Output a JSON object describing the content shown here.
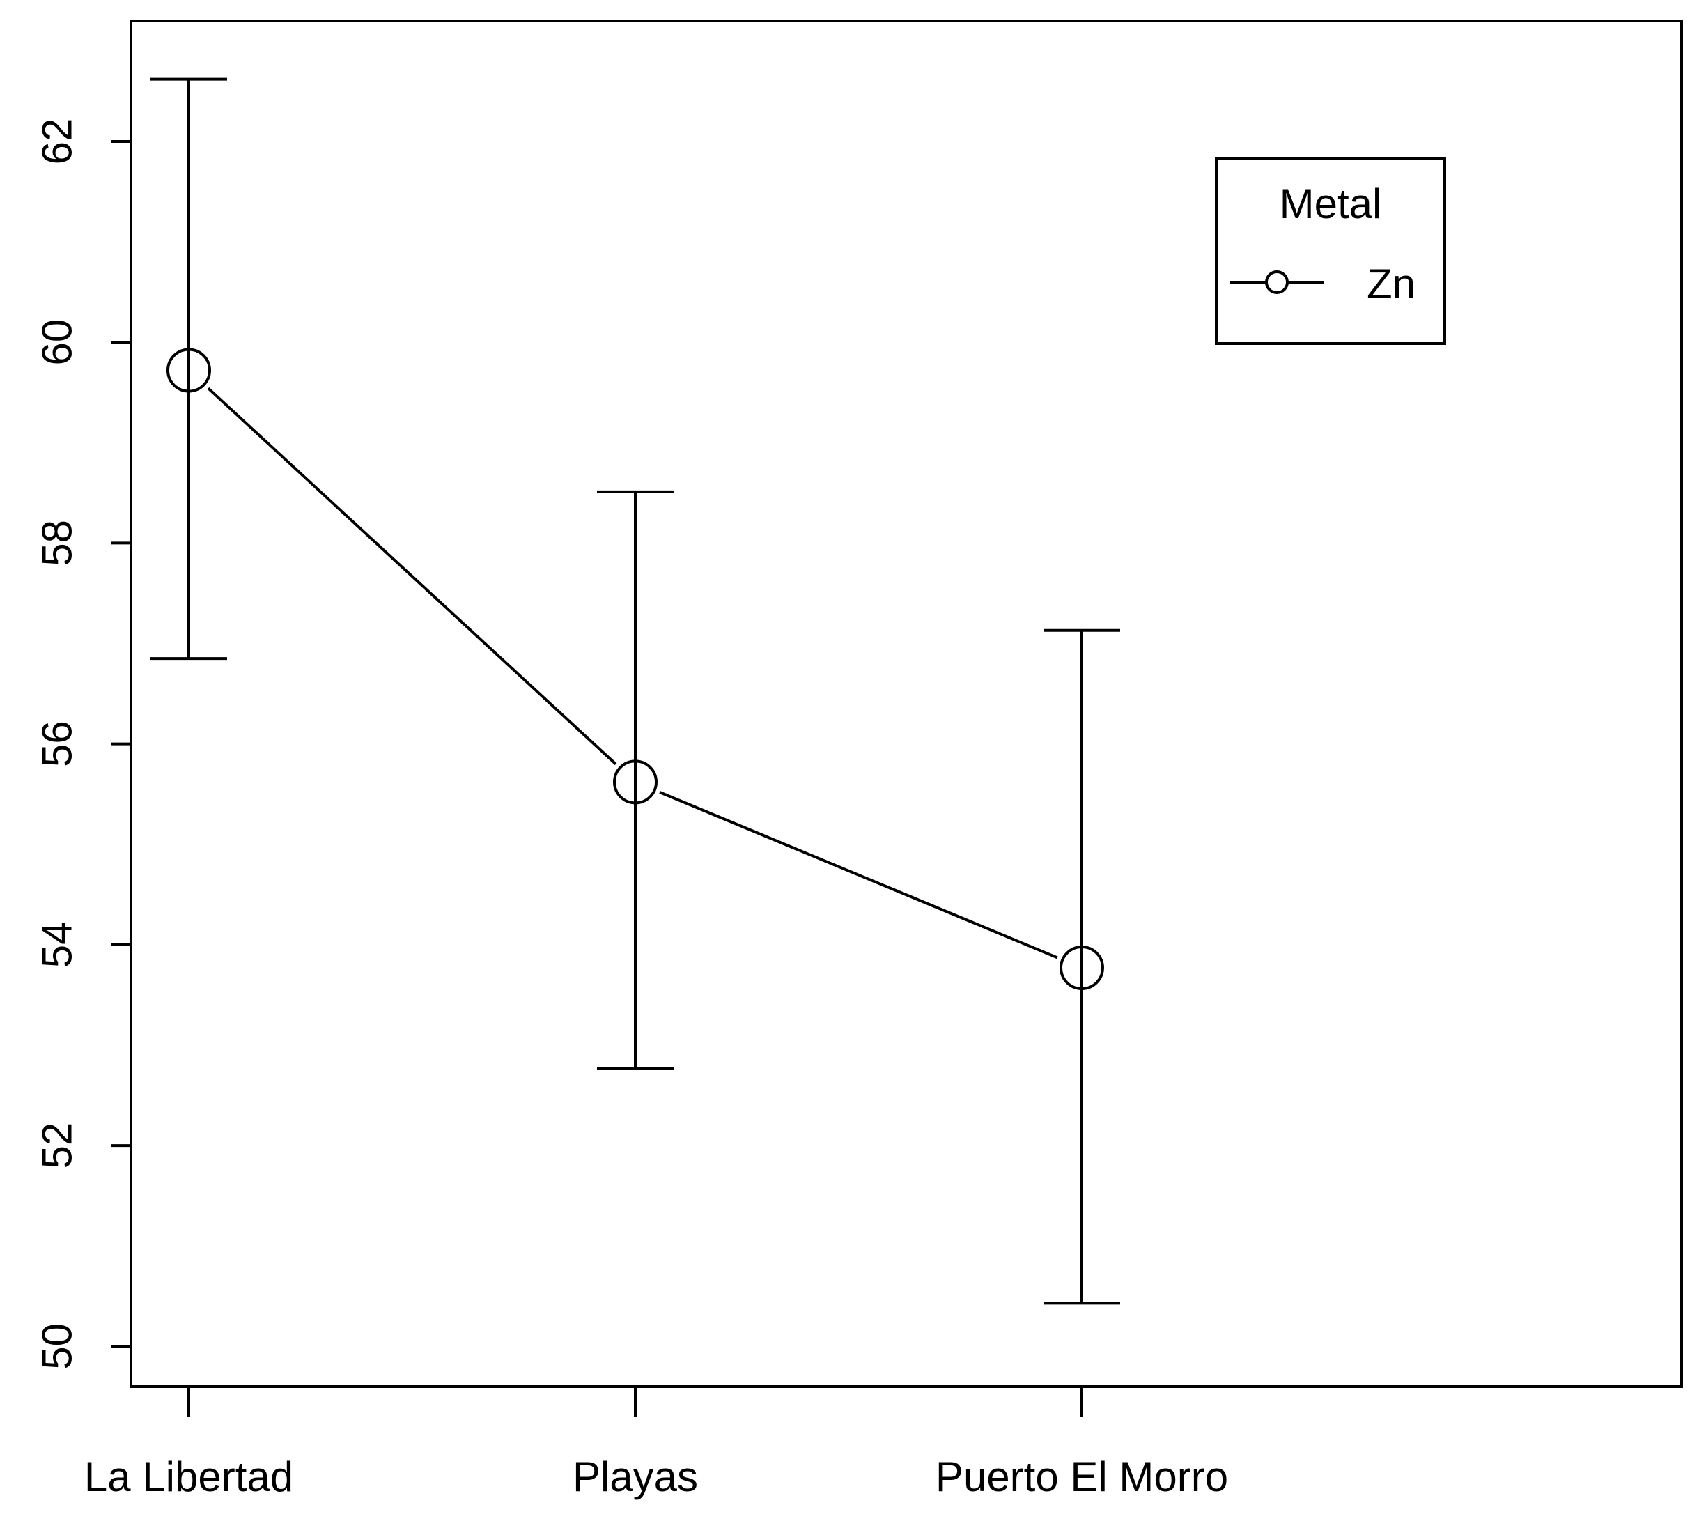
{
  "chart_data": {
    "type": "line",
    "title": "",
    "xlabel": "",
    "ylabel": "",
    "categories": [
      "La Libertad",
      "Playas",
      "Puerto El Morro"
    ],
    "series": [
      {
        "name": "Zn",
        "values": [
          59.72,
          55.62,
          53.77
        ],
        "error_low": [
          56.85,
          52.77,
          50.43
        ],
        "error_high": [
          62.62,
          58.51,
          57.13
        ]
      }
    ],
    "ylim": [
      49.6,
      63.2
    ],
    "yticks": [
      "50",
      "52",
      "54",
      "56",
      "58",
      "60",
      "62"
    ],
    "grid": false,
    "legend": {
      "title": "Metal",
      "placement": "top-right"
    },
    "marker": "open-circle",
    "line_color": "#000000"
  }
}
